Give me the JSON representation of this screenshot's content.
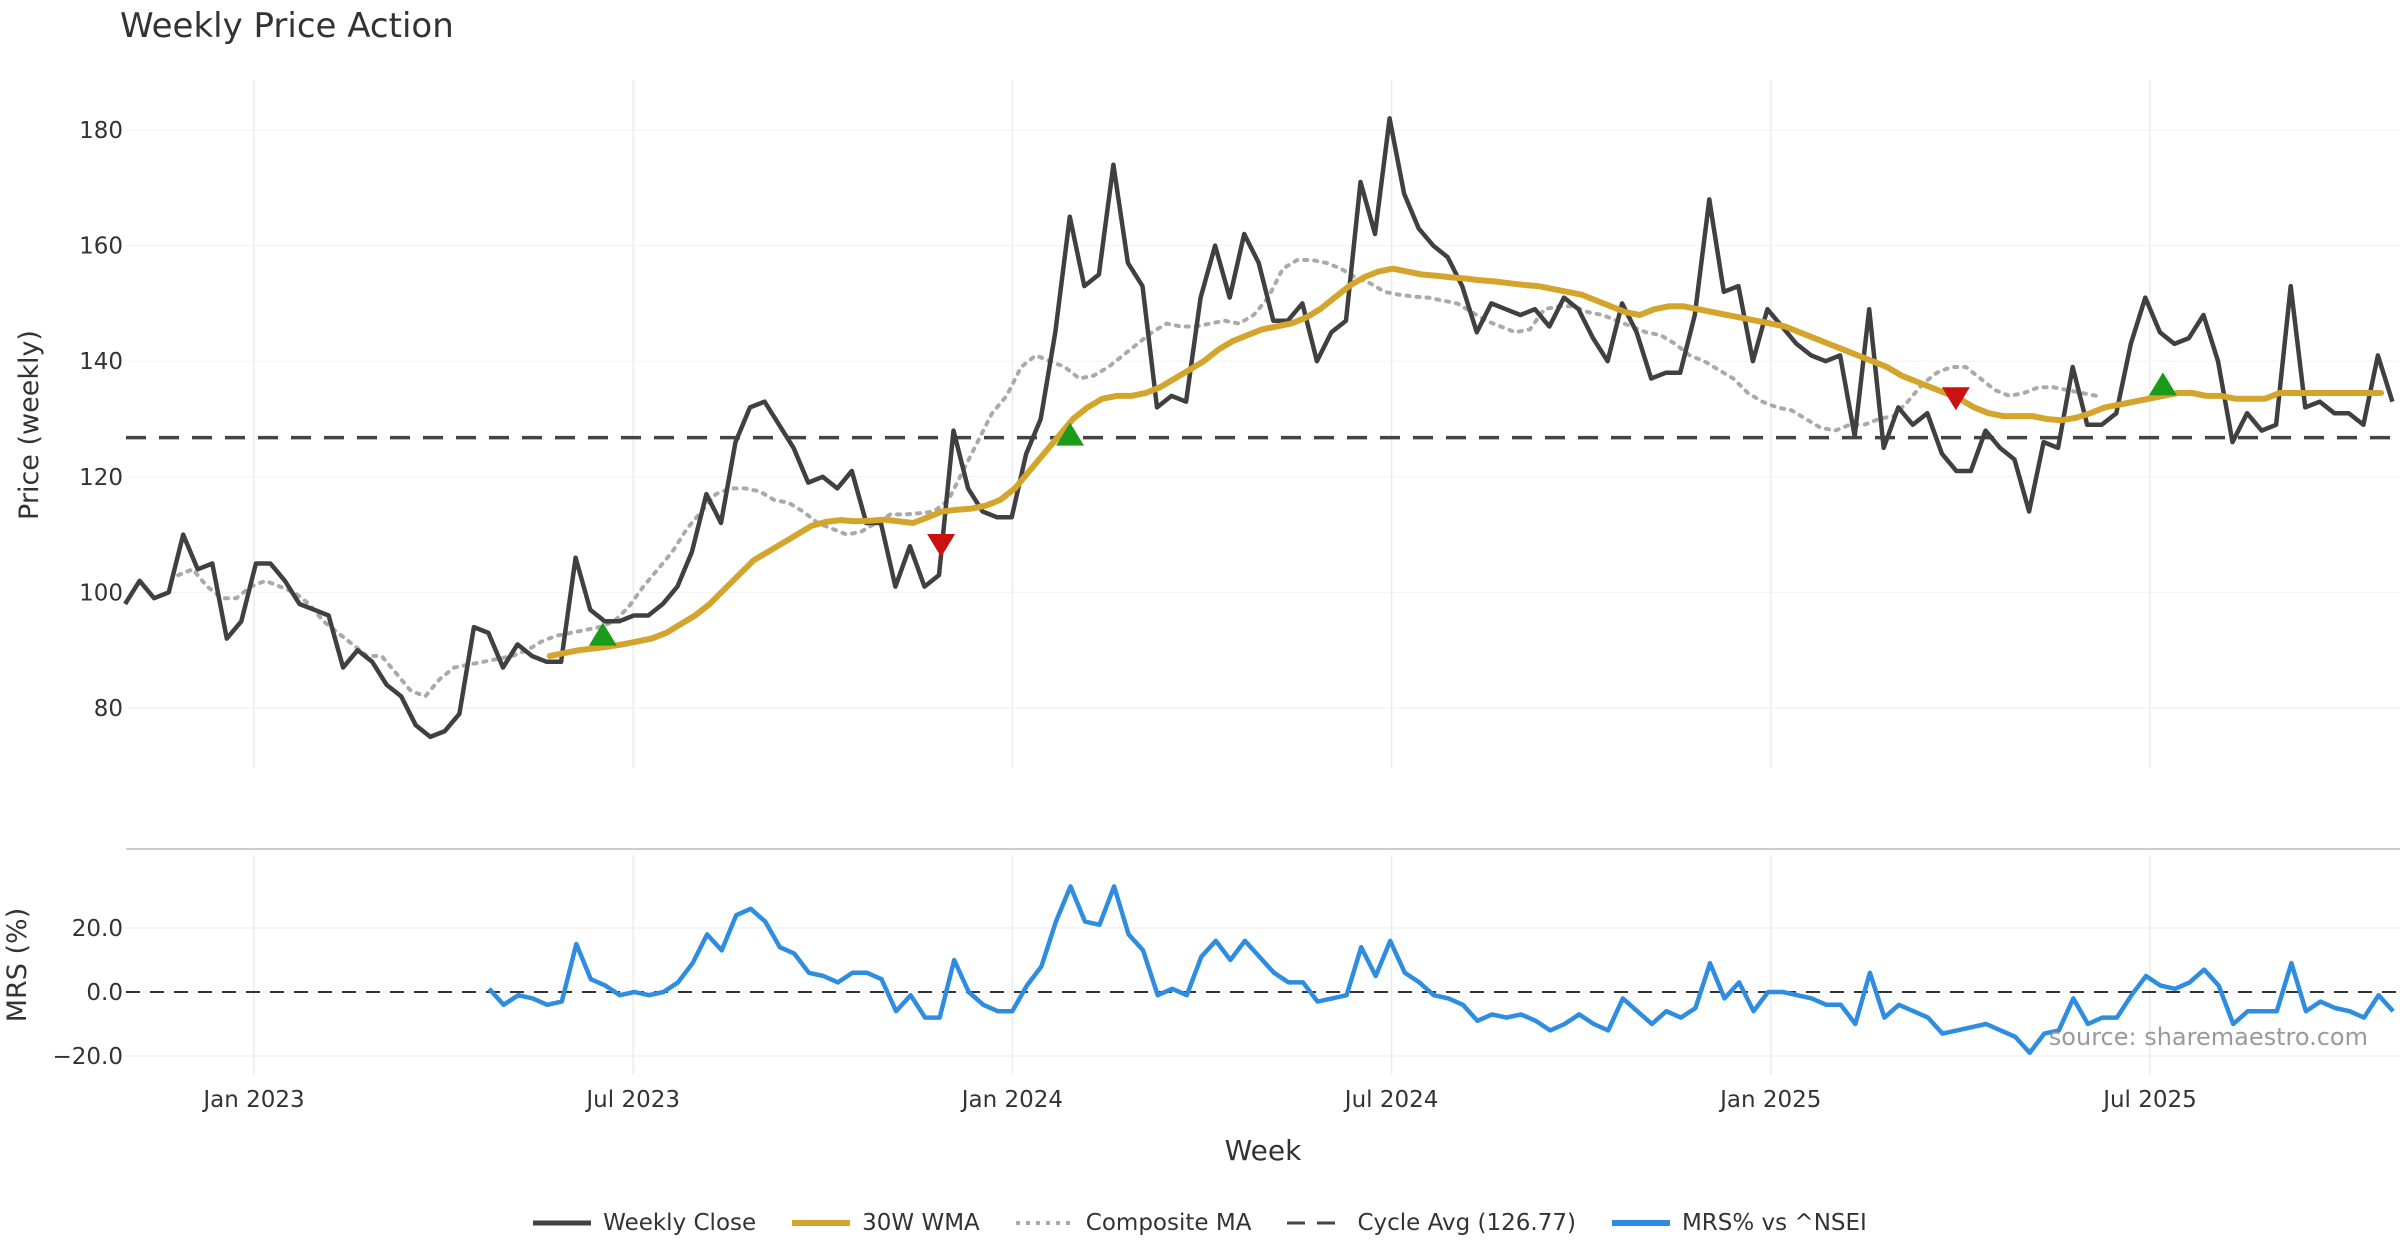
{
  "chart_data": {
    "type": "line",
    "title": "Weekly Price Action",
    "source": "source: sharemaestro.com",
    "xlabel": "Week",
    "x_ticks": [
      {
        "label": "Jan 2023",
        "t": 2023.0
      },
      {
        "label": "Jul 2023",
        "t": 2023.5
      },
      {
        "label": "Jan 2024",
        "t": 2024.0
      },
      {
        "label": "Jul 2024",
        "t": 2024.5
      },
      {
        "label": "Jan 2025",
        "t": 2025.0
      },
      {
        "label": "Jul 2025",
        "t": 2025.5
      }
    ],
    "x_range": [
      2022.83,
      2025.83
    ],
    "price_panel": {
      "ylabel": "Price (weekly)",
      "ylim": [
        68,
        190
      ],
      "y_ticks": [
        80,
        100,
        120,
        140,
        160,
        180
      ],
      "cycle_avg": 126.77,
      "series": {
        "weekly_close": {
          "name": "Weekly Close",
          "color": "#404040",
          "start": 2022.83,
          "values": [
            98,
            102,
            99,
            100,
            110,
            104,
            105,
            92,
            95,
            105,
            105,
            102,
            98,
            97,
            96,
            87,
            90,
            88,
            84,
            82,
            77,
            75,
            76,
            79,
            94,
            93,
            87,
            91,
            89,
            88,
            88,
            106,
            97,
            95,
            95,
            96,
            96,
            98,
            101,
            107,
            117,
            112,
            126,
            132,
            133,
            129,
            125,
            119,
            120,
            118,
            121,
            112,
            112,
            101,
            108,
            101,
            103,
            128,
            118,
            114,
            113,
            113,
            124,
            130,
            145,
            165,
            153,
            155,
            174,
            157,
            153,
            132,
            134,
            133,
            151,
            160,
            151,
            162,
            157,
            147,
            147,
            150,
            140,
            145,
            147,
            171,
            162,
            182,
            169,
            163,
            160,
            158,
            153,
            145,
            150,
            149,
            148,
            149,
            146,
            151,
            149,
            144,
            140,
            150,
            145,
            137,
            138,
            138,
            148,
            168,
            152,
            153,
            140,
            149,
            146,
            143,
            141,
            140,
            141,
            127,
            149,
            125,
            132,
            129,
            131,
            124,
            121,
            121,
            128,
            125,
            123,
            114,
            126,
            125,
            139,
            129,
            129,
            131,
            143,
            151,
            145,
            143,
            144,
            148,
            140,
            126,
            131,
            128,
            129,
            153,
            132,
            133,
            131,
            131,
            129,
            141,
            133
          ]
        },
        "wma_30": {
          "name": "30W WMA",
          "color": "#d4a52c",
          "start": 2023.39,
          "values": [
            89,
            89.5,
            90,
            90.3,
            90.6,
            91,
            91.5,
            92,
            93,
            94.5,
            96,
            98,
            100.5,
            103,
            105.5,
            107,
            108.5,
            110,
            111.5,
            112.2,
            112.5,
            112.3,
            112.4,
            112.6,
            112.3,
            112,
            113,
            114,
            114.3,
            114.5,
            115,
            116,
            118,
            121,
            124,
            127,
            130,
            132,
            133.5,
            134,
            134,
            134.5,
            135.5,
            137,
            138.5,
            140,
            142,
            143.5,
            144.5,
            145.5,
            146,
            146.5,
            147.5,
            149,
            151,
            153,
            154.5,
            155.5,
            156,
            155.5,
            155,
            154.8,
            154.5,
            154.3,
            154,
            153.8,
            153.5,
            153.2,
            153,
            152.5,
            152,
            151.5,
            150.5,
            149.5,
            148.5,
            148,
            149,
            149.5,
            149.5,
            149,
            148.5,
            148,
            147.5,
            147,
            146.5,
            146,
            145,
            144,
            143,
            142,
            141,
            140,
            139,
            137.5,
            136.5,
            135.5,
            134.5,
            133.5,
            132,
            131,
            130.5,
            130.5,
            130.5,
            130,
            129.8,
            130.2,
            131,
            132,
            132.5,
            133,
            133.5,
            134,
            134.5,
            134.5,
            134,
            134,
            133.5,
            133.5,
            133.5,
            134.5,
            134.5,
            134.5,
            134.5,
            134.5,
            134.5,
            134.5,
            134.5
          ]
        },
        "composite_ma": {
          "name": "Composite MA",
          "color": "#aaaaaa",
          "start": 2022.9,
          "values": [
            103,
            104,
            101,
            99,
            99,
            101,
            102,
            101,
            100,
            98,
            95,
            93,
            91,
            89,
            89,
            86,
            83,
            82,
            85,
            87,
            87.5,
            88,
            88.5,
            89,
            90,
            91.5,
            92.5,
            93,
            93.5,
            94,
            95,
            97.5,
            101,
            104,
            107,
            111,
            114,
            117,
            118,
            118,
            117.5,
            116,
            115.5,
            114,
            112,
            111,
            110,
            110.5,
            112,
            113.5,
            113.5,
            113.7,
            114,
            116,
            121,
            126,
            131,
            134,
            139,
            141,
            140,
            139,
            137,
            137.5,
            139,
            141,
            143,
            145,
            146.5,
            146,
            146,
            146.5,
            147,
            146.5,
            148,
            151,
            156,
            157.5,
            157.5,
            157,
            156,
            154.5,
            153.5,
            152,
            151.5,
            151.2,
            151,
            150.5,
            150,
            148.5,
            147,
            146,
            145,
            145.5,
            149,
            149.5,
            149.5,
            148.5,
            148,
            147,
            146,
            145,
            144.5,
            143,
            141,
            140,
            138.5,
            137,
            134.5,
            133,
            132,
            131.5,
            130,
            128.5,
            128,
            129,
            129,
            130,
            130.5,
            133,
            136,
            138,
            139,
            139,
            137,
            135,
            134,
            134.5,
            135.5,
            135.5,
            135,
            134.5,
            134
          ]
        }
      },
      "markers": [
        {
          "type": "buy",
          "t": 2023.46,
          "price": 92.7
        },
        {
          "type": "sell",
          "t": 2023.906,
          "price": 108.2
        },
        {
          "type": "buy",
          "t": 2024.076,
          "price": 127.3
        },
        {
          "type": "sell",
          "t": 2025.244,
          "price": 133.6
        },
        {
          "type": "buy",
          "t": 2025.517,
          "price": 136
        }
      ]
    },
    "mrs_panel": {
      "ylabel": "MRS (%)",
      "ylim": [
        -22,
        36
      ],
      "y_ticks": [
        20,
        0,
        -20
      ],
      "y_tick_labels": [
        "20.0",
        "0.0",
        "−20.0"
      ],
      "series": {
        "name": "MRS% vs ^NSEI",
        "color": "#2e8de0",
        "start": 2023.31,
        "values": [
          1,
          -4,
          -1,
          -2,
          -4,
          -3,
          15,
          4,
          2,
          -1,
          0,
          -1,
          0,
          3,
          9,
          18,
          13,
          24,
          26,
          22,
          14,
          12,
          6,
          5,
          3,
          6,
          6,
          4,
          -6,
          -1,
          -8,
          -8,
          10,
          0,
          -4,
          -6,
          -6,
          2,
          8,
          22,
          33,
          22,
          21,
          33,
          18,
          13,
          -1,
          1,
          -1,
          11,
          16,
          10,
          16,
          11,
          6,
          3,
          3,
          -3,
          -2,
          -1,
          14,
          5,
          16,
          6,
          3,
          -1,
          -2,
          -4,
          -9,
          -7,
          -8,
          -7,
          -9,
          -12,
          -10,
          -7,
          -10,
          -12,
          -2,
          -6,
          -10,
          -6,
          -8,
          -5,
          9,
          -2,
          3,
          -6,
          0,
          0,
          -1,
          -2,
          -4,
          -4,
          -10,
          6,
          -8,
          -4,
          -6,
          -8,
          -13,
          -12,
          -11,
          -10,
          -12,
          -14,
          -19,
          -13,
          -12,
          -2,
          -10,
          -8,
          -8,
          -1,
          5,
          2,
          1,
          3,
          7,
          2,
          -10,
          -6,
          -6,
          -6,
          9,
          -6,
          -3,
          -5,
          -6,
          -8,
          -1,
          -6
        ]
      }
    },
    "legend": [
      {
        "key": "weekly_close",
        "label": "Weekly Close",
        "style": "solid",
        "color": "#404040"
      },
      {
        "key": "wma_30",
        "label": "30W WMA",
        "style": "solid",
        "color": "#d4a52c"
      },
      {
        "key": "composite_ma",
        "label": "Composite MA",
        "style": "dotted",
        "color": "#aaaaaa"
      },
      {
        "key": "cycle_avg",
        "label": "Cycle Avg (126.77)",
        "style": "dashed",
        "color": "#444444"
      },
      {
        "key": "mrs",
        "label": "MRS% vs ^NSEI",
        "style": "solid",
        "color": "#2e8de0"
      }
    ],
    "marker_colors": {
      "buy": "#1a9c1a",
      "sell": "#cc1111"
    }
  }
}
